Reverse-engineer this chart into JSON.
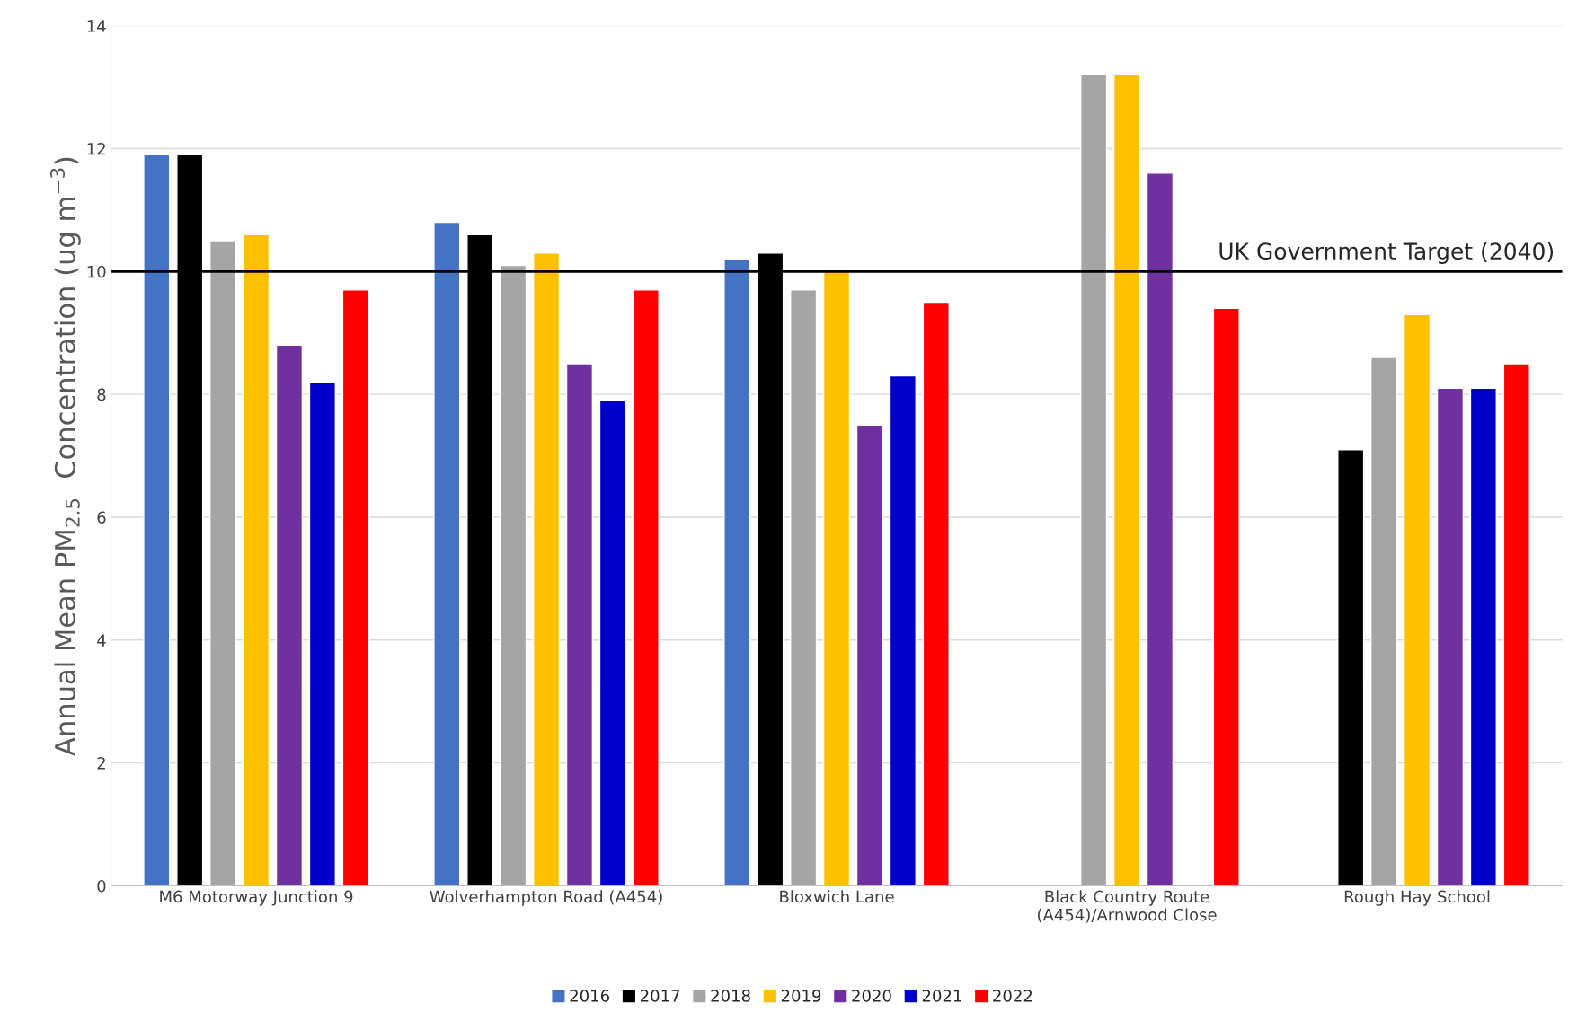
{
  "chart_data": {
    "type": "bar",
    "ylabel": "Annual Mean PM$_{2.5}$  Concentration (ug m$^{−3}$)",
    "categories": [
      "M6 Motorway Junction 9",
      "Wolverhampton Road (A454)",
      "Bloxwich Lane",
      "Black Country Route\n(A454)/Arnwood Close",
      "Rough Hay School"
    ],
    "series": [
      {
        "name": "2016",
        "color": "#4472c4",
        "values": [
          11.9,
          10.8,
          10.2,
          null,
          null
        ]
      },
      {
        "name": "2017",
        "color": "#000000",
        "values": [
          11.9,
          10.6,
          10.3,
          null,
          7.1
        ]
      },
      {
        "name": "2018",
        "color": "#a5a5a5",
        "values": [
          10.5,
          10.1,
          9.7,
          13.2,
          8.6
        ]
      },
      {
        "name": "2019",
        "color": "#ffc000",
        "values": [
          10.6,
          10.3,
          10.0,
          13.2,
          9.3
        ]
      },
      {
        "name": "2020",
        "color": "#7030a0",
        "values": [
          8.8,
          8.5,
          7.5,
          11.6,
          8.1
        ]
      },
      {
        "name": "2021",
        "color": "#0000cc",
        "values": [
          8.2,
          7.9,
          8.3,
          null,
          8.1
        ]
      },
      {
        "name": "2022",
        "color": "#ff0000",
        "values": [
          9.7,
          9.7,
          9.5,
          9.4,
          8.5
        ]
      }
    ],
    "ylim": [
      0,
      14
    ],
    "yticks": [
      0,
      2,
      4,
      6,
      8,
      10,
      12,
      14
    ],
    "grid": "y",
    "legend": "bottom",
    "ref_lines": [
      {
        "axis": "y",
        "value": 10,
        "label": "UK Government Target (2040)",
        "color": "#000000"
      }
    ]
  }
}
